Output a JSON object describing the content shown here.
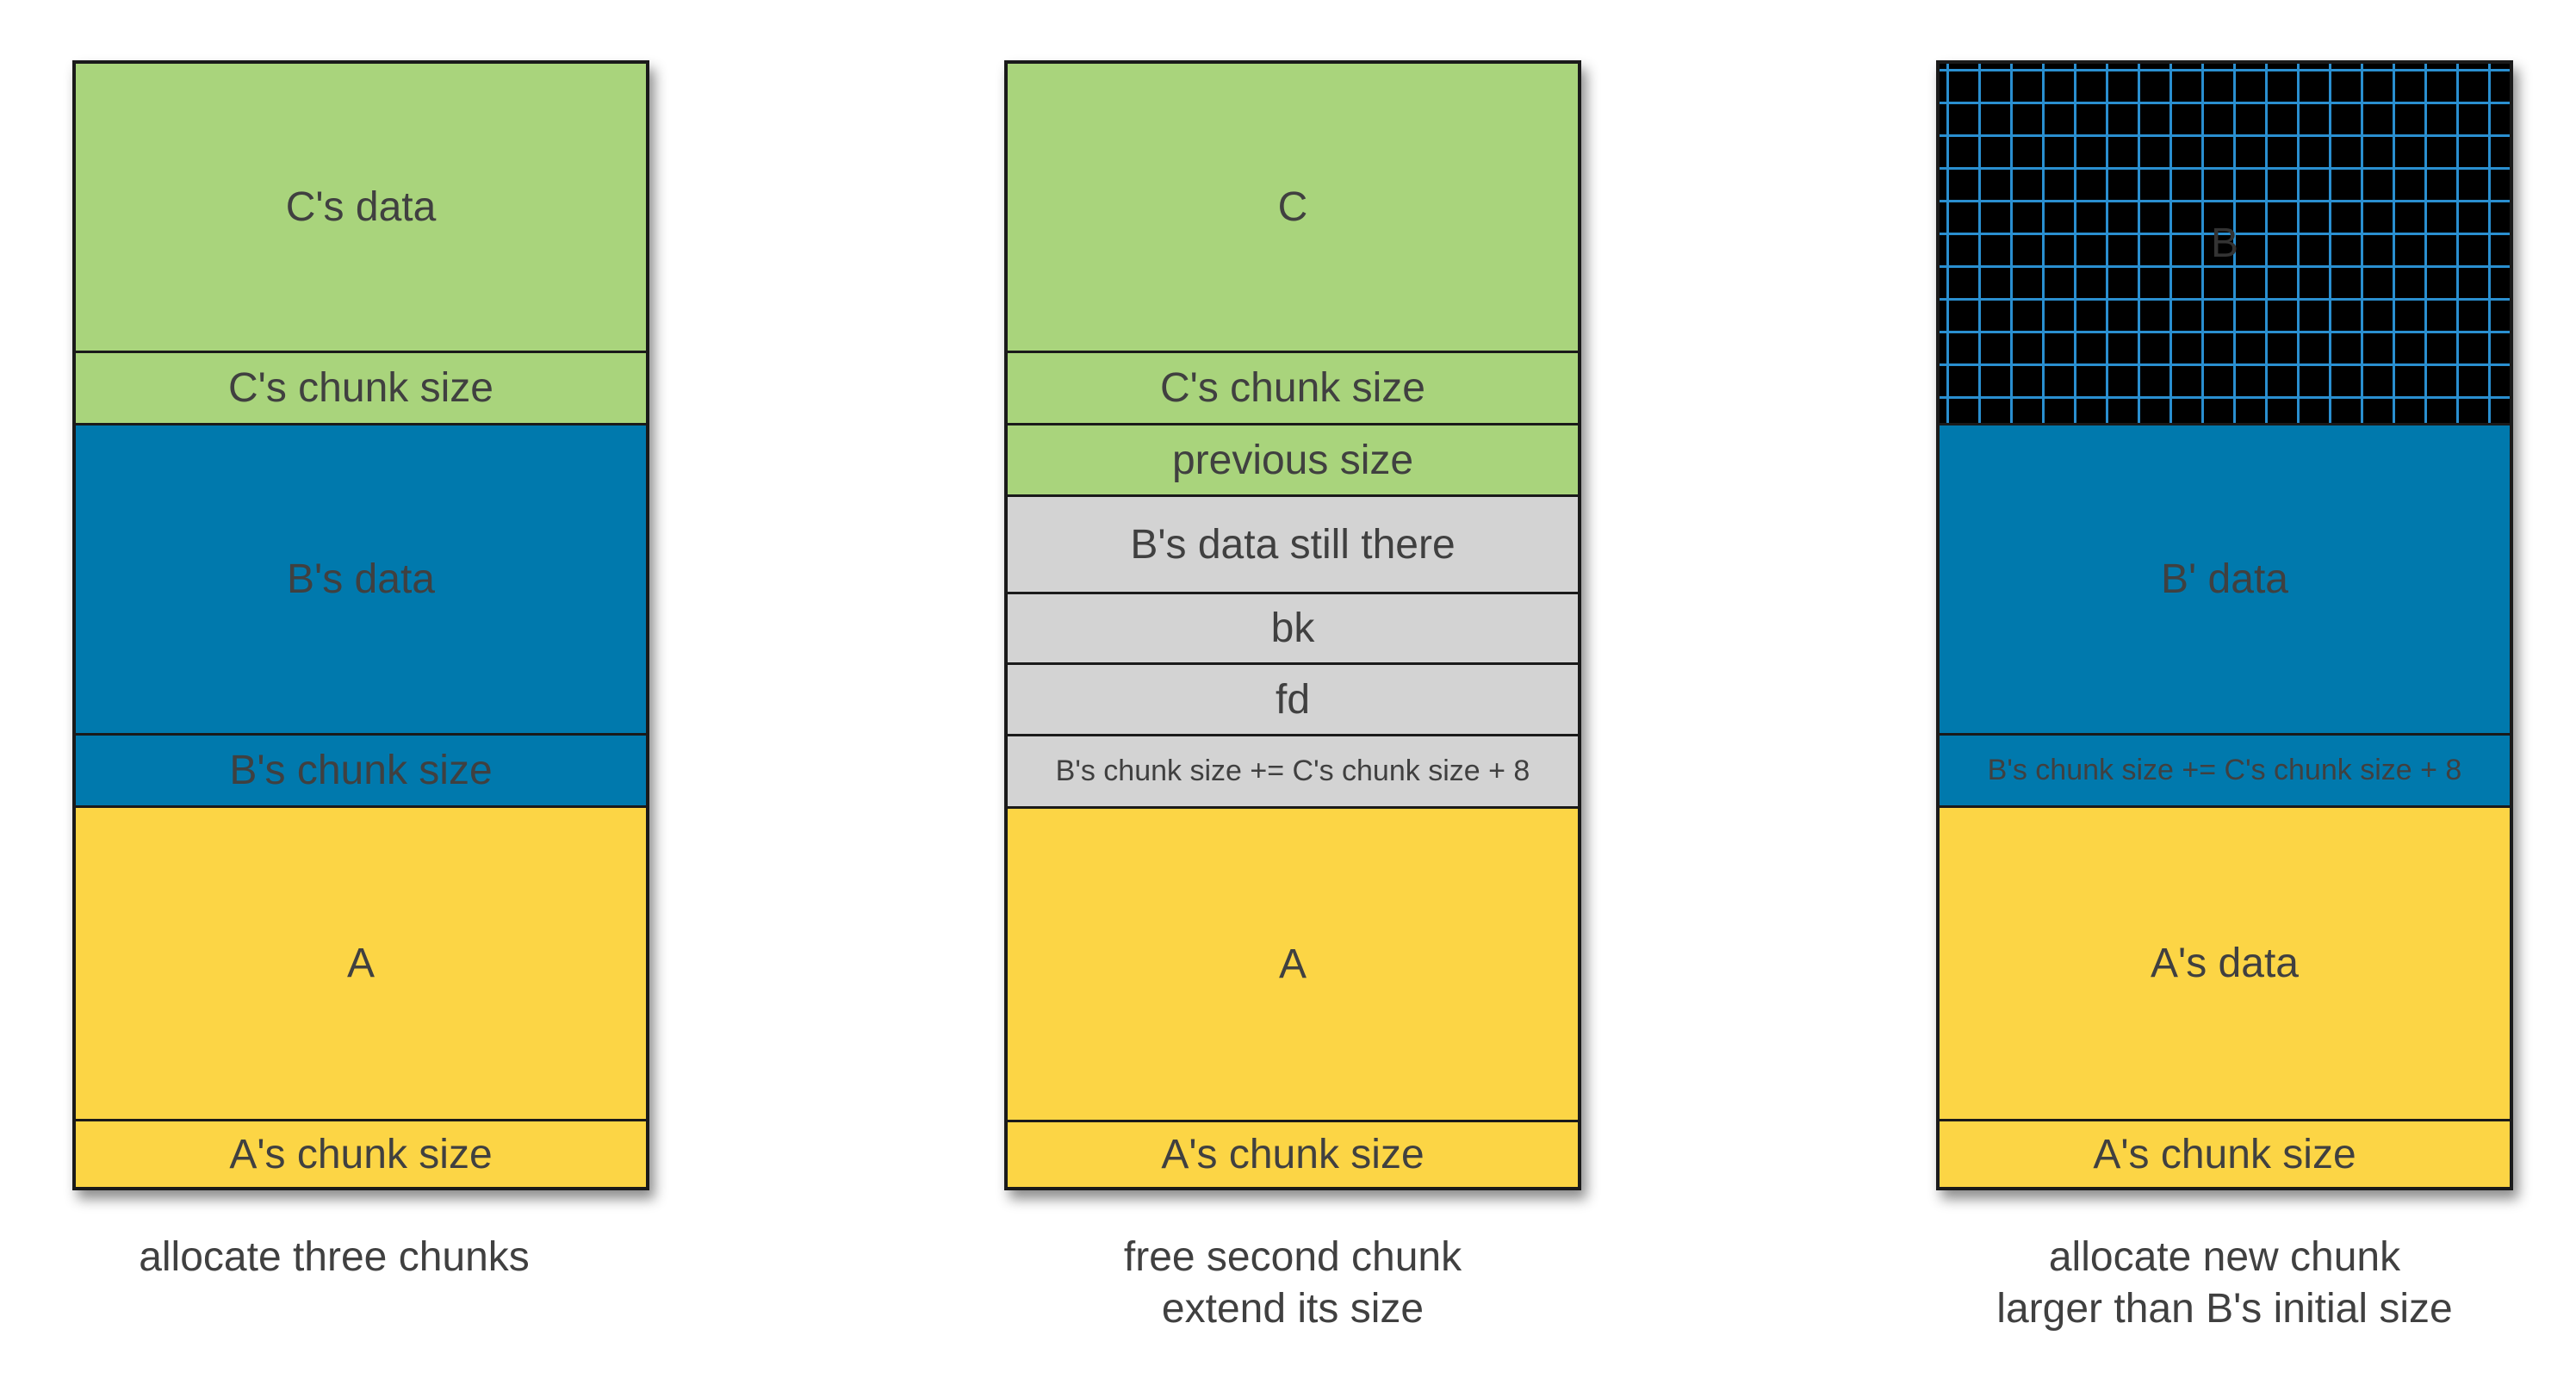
{
  "stages": [
    {
      "blocks": [
        {
          "label": "C's data",
          "color": "#a9d47c"
        },
        {
          "label": "C's chunk size",
          "color": "#a9d47c"
        },
        {
          "label": "B's data",
          "color": "#0079ad"
        },
        {
          "label": "B's chunk size",
          "color": "#0079ad"
        },
        {
          "label": "A",
          "color": "#fcd545"
        },
        {
          "label": "A's chunk size",
          "color": "#fcd545"
        }
      ],
      "caption": [
        "allocate three chunks"
      ]
    },
    {
      "blocks": [
        {
          "label": "C",
          "color": "#a9d47c"
        },
        {
          "label": "C's chunk size",
          "color": "#a9d47c"
        },
        {
          "label": "previous size",
          "color": "#a9d47c"
        },
        {
          "label": "B's data still there",
          "color": "#d3d3d3"
        },
        {
          "label": "bk",
          "color": "#d3d3d3"
        },
        {
          "label": "fd",
          "color": "#d3d3d3"
        },
        {
          "label": "B's chunk size += C's chunk size + 8",
          "color": "#d3d3d3"
        },
        {
          "label": "A",
          "color": "#fcd545"
        },
        {
          "label": "A's chunk size",
          "color": "#fcd545"
        }
      ],
      "caption": [
        "free second chunk",
        "extend its size"
      ]
    },
    {
      "blocks": [
        {
          "label": "B",
          "color": "#000000"
        },
        {
          "label": "B' data",
          "color": "#0079ad"
        },
        {
          "label": "B's chunk size += C's chunk size + 8",
          "color": "#0079ad"
        },
        {
          "label": "A's data",
          "color": "#fcd545"
        },
        {
          "label": "A's chunk size",
          "color": "#fcd545"
        }
      ],
      "caption": [
        "allocate new chunk",
        "larger than B's initial size"
      ]
    }
  ]
}
